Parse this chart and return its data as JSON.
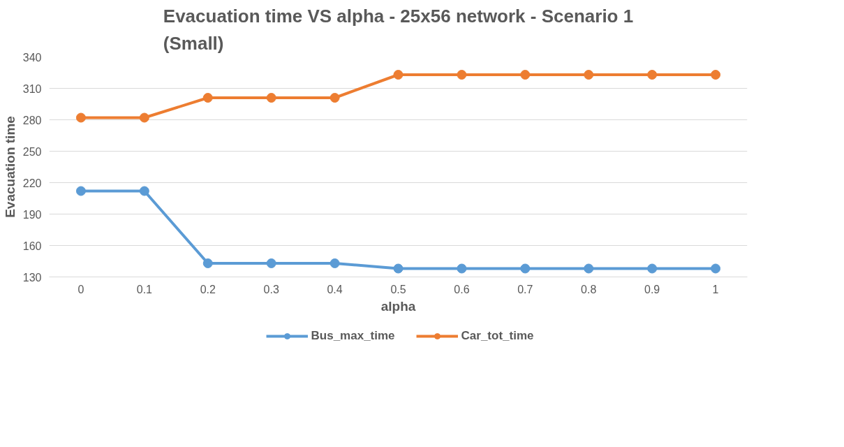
{
  "chart_data": {
    "type": "line",
    "title": "Evacuation time VS alpha - 25x56 network - Scenario 1\n(Small)",
    "xlabel": "alpha",
    "ylabel": "Evacuation time",
    "categories": [
      "0",
      "0.1",
      "0.2",
      "0.3",
      "0.4",
      "0.5",
      "0.6",
      "0.7",
      "0.8",
      "0.9",
      "1"
    ],
    "series": [
      {
        "name": "Bus_max_time",
        "color": "#5b9bd5",
        "values": [
          212,
          212,
          143,
          143,
          143,
          138,
          138,
          138,
          138,
          138,
          138
        ]
      },
      {
        "name": "Car_tot_time",
        "color": "#ed7d31",
        "values": [
          282,
          282,
          301,
          301,
          301,
          323,
          323,
          323,
          323,
          323,
          323
        ]
      }
    ],
    "ylim": [
      130,
      340
    ],
    "yticks": [
      130,
      160,
      190,
      220,
      250,
      280,
      310,
      340
    ],
    "grid": "y",
    "legend": "bottom",
    "marker": "circle",
    "line_style": "solid"
  }
}
